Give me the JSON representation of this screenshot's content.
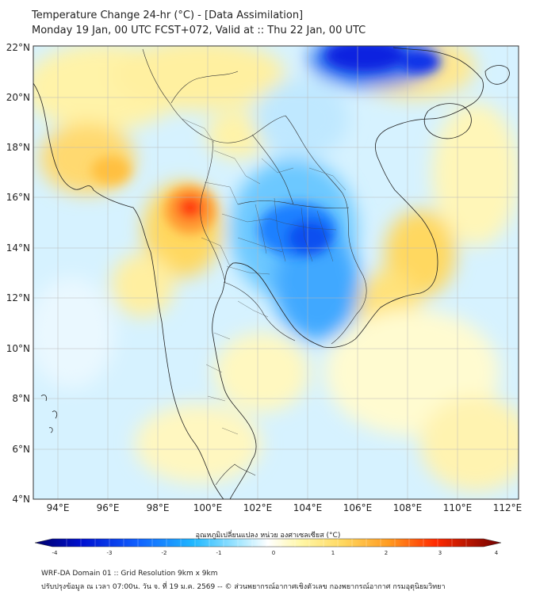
{
  "header": {
    "title_line1": "Temperature Change 24-hr (°C) - [Data Assimilation]",
    "title_line2": "Monday 19 Jan, 00 UTC FCST+072, Valid at :: Thu 22 Jan, 00 UTC"
  },
  "map": {
    "lat_labels": [
      "22°N",
      "20°N",
      "18°N",
      "16°N",
      "14°N",
      "12°N",
      "10°N",
      "8°N",
      "6°N",
      "4°N"
    ],
    "lon_labels": [
      "94°E",
      "96°E",
      "98°E",
      "100°E",
      "102°E",
      "104°E",
      "106°E",
      "108°E",
      "110°E",
      "112°E"
    ],
    "warm_color": "#ff3a10",
    "cold_color": "#0a1ee0"
  },
  "colorbar": {
    "title": "อุณหภูมิเปลี่ยนแปลง หน่วย องศาเซลเซียส (°C)",
    "ticks": [
      "-4",
      "-3",
      "-2",
      "-1",
      "0",
      "1",
      "2",
      "3",
      "4"
    ]
  },
  "footer": {
    "line1": "WRF-DA Domain 01 :: Grid Resolution 9km x 9km",
    "line2": "ปรับปรุงข้อมูล ณ เวลา 07:00น. วัน จ. ที่ 19 ม.ค. 2569 -- © ส่วนพยากรณ์อากาศเชิงตัวเลข กองพยากรณ์อากาศ กรมอุตุนิยมวิทยา"
  }
}
